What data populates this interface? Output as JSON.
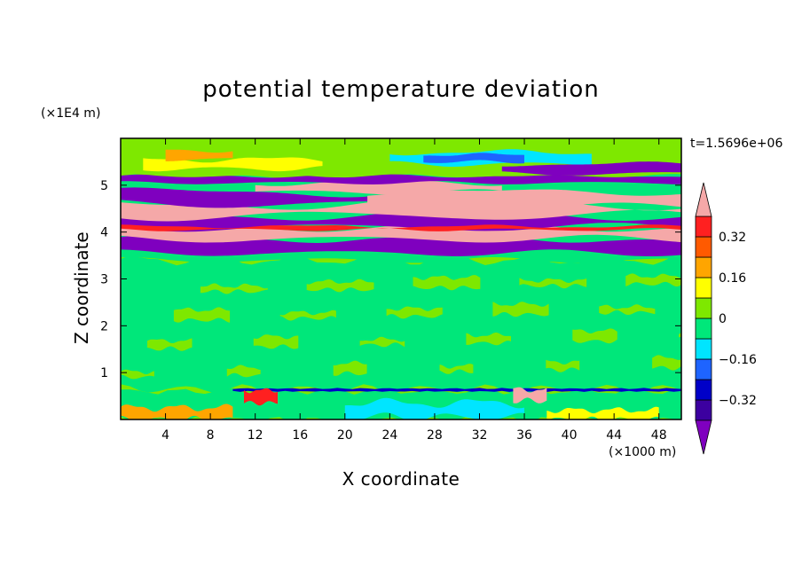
{
  "chart_data": {
    "type": "heatmap",
    "title": "potential temperature deviation",
    "xlabel": "X coordinate",
    "ylabel": "Z coordinate",
    "x_unit": "(×1000 m)",
    "y_unit": "(×1E4 m)",
    "time_label": "t=1.5696e+06",
    "xlim": [
      0,
      50
    ],
    "ylim": [
      0,
      6
    ],
    "x_ticks": [
      4,
      8,
      12,
      16,
      20,
      24,
      28,
      32,
      36,
      40,
      44,
      48
    ],
    "y_ticks": [
      1,
      2,
      3,
      4,
      5
    ],
    "colorbar": {
      "levels": [
        -0.4,
        -0.32,
        -0.24,
        -0.16,
        -0.08,
        0,
        0.08,
        0.16,
        0.24,
        0.32,
        0.4
      ],
      "tick_labels": [
        "0.32",
        "0.16",
        "0",
        "−0.16",
        "−0.32"
      ],
      "tick_values": [
        0.32,
        0.16,
        0,
        -0.16,
        -0.32
      ],
      "colors_low_to_high": [
        "#7f00bf",
        "#3c00a0",
        "#0000c8",
        "#1e64ff",
        "#00e5ff",
        "#00e77a",
        "#7ee800",
        "#ffff00",
        "#ffa500",
        "#ff5a00",
        "#ff2020",
        "#f5a8a8"
      ]
    },
    "bands": [
      {
        "z_range": [
          0,
          0.6
        ],
        "pattern": "mixed small-scale turbulent deviations",
        "colors": [
          "#00e77a",
          "#7ee800",
          "#00e5ff",
          "#ffa500",
          "#ffff00"
        ]
      },
      {
        "z_range": [
          0.6,
          0.65
        ],
        "pattern": "thin thermal layer with localized extremes",
        "colors": [
          "#0000c8",
          "#ff2020",
          "#f5a8a8"
        ]
      },
      {
        "z_range": [
          0.65,
          3.4
        ],
        "pattern": "weak deviations near zero",
        "colors": [
          "#00e77a",
          "#7ee800"
        ]
      },
      {
        "z_range": [
          3.4,
          5.2
        ],
        "pattern": "strong alternating warm and cold layers",
        "colors": [
          "#f5a8a8",
          "#7f00bf",
          "#ff2020",
          "#0000c8"
        ]
      },
      {
        "z_range": [
          5.2,
          6.0
        ],
        "pattern": "upper layers of moderate deviation",
        "colors": [
          "#7ee800",
          "#ffff00",
          "#00e5ff",
          "#1e64ff",
          "#ffa500"
        ]
      }
    ]
  }
}
